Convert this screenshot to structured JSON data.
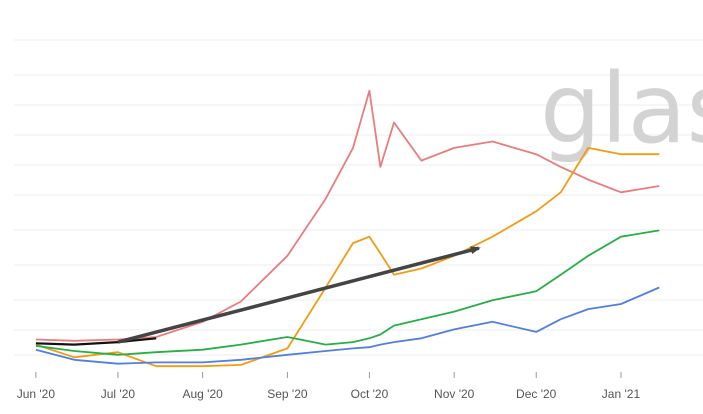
{
  "watermark": "glas",
  "chart_data": {
    "type": "line",
    "x_ticks": [
      "Jun '20",
      "Jul '20",
      "Aug '20",
      "Sep '20",
      "Oct '20",
      "Nov '20",
      "Dec '20",
      "Jan '21"
    ],
    "grid": true,
    "legend": "none",
    "colors": {
      "red": "#e97c7c",
      "orange": "#f39c12",
      "green": "#27ae45",
      "blue": "#4f7fe0",
      "black": "#111111",
      "trend": "#444444"
    },
    "x_dates": [
      "2020-06-01",
      "2020-06-15",
      "2020-07-01",
      "2020-07-15",
      "2020-08-01",
      "2020-08-15",
      "2020-09-01",
      "2020-09-15",
      "2020-09-25",
      "2020-10-01",
      "2020-10-05",
      "2020-10-10",
      "2020-10-20",
      "2020-11-01",
      "2020-11-15",
      "2020-12-01",
      "2020-12-10",
      "2020-12-20",
      "2021-01-01",
      "2021-01-15"
    ],
    "series": [
      {
        "key": "red",
        "values": [
          0.24,
          0.23,
          0.24,
          0.26,
          0.38,
          0.54,
          0.9,
          1.35,
          1.75,
          2.2,
          1.6,
          1.95,
          1.65,
          1.75,
          1.8,
          1.7,
          1.6,
          1.5,
          1.4,
          1.45
        ]
      },
      {
        "key": "orange",
        "values": [
          0.2,
          0.1,
          0.14,
          0.03,
          0.03,
          0.04,
          0.17,
          0.65,
          1.0,
          1.05,
          0.92,
          0.75,
          0.8,
          0.9,
          1.05,
          1.25,
          1.4,
          1.75,
          1.7,
          1.7
        ]
      },
      {
        "key": "green",
        "values": [
          0.19,
          0.15,
          0.12,
          0.14,
          0.16,
          0.2,
          0.26,
          0.2,
          0.22,
          0.25,
          0.28,
          0.35,
          0.4,
          0.46,
          0.55,
          0.62,
          0.75,
          0.9,
          1.05,
          1.1
        ]
      },
      {
        "key": "blue",
        "values": [
          0.16,
          0.08,
          0.05,
          0.06,
          0.06,
          0.08,
          0.12,
          0.15,
          0.17,
          0.18,
          0.2,
          0.22,
          0.25,
          0.32,
          0.38,
          0.3,
          0.4,
          0.48,
          0.52,
          0.65
        ]
      },
      {
        "key": "black",
        "values": [
          0.21,
          0.2,
          0.22,
          0.25,
          null,
          null,
          null,
          null,
          null,
          null,
          null,
          null,
          null,
          null,
          null,
          null,
          null,
          null,
          null,
          null
        ]
      }
    ],
    "trend_arrow": {
      "from_date": "2020-07-01",
      "from_value": 0.22,
      "to_date": "2020-11-10",
      "to_value": 0.96
    }
  }
}
